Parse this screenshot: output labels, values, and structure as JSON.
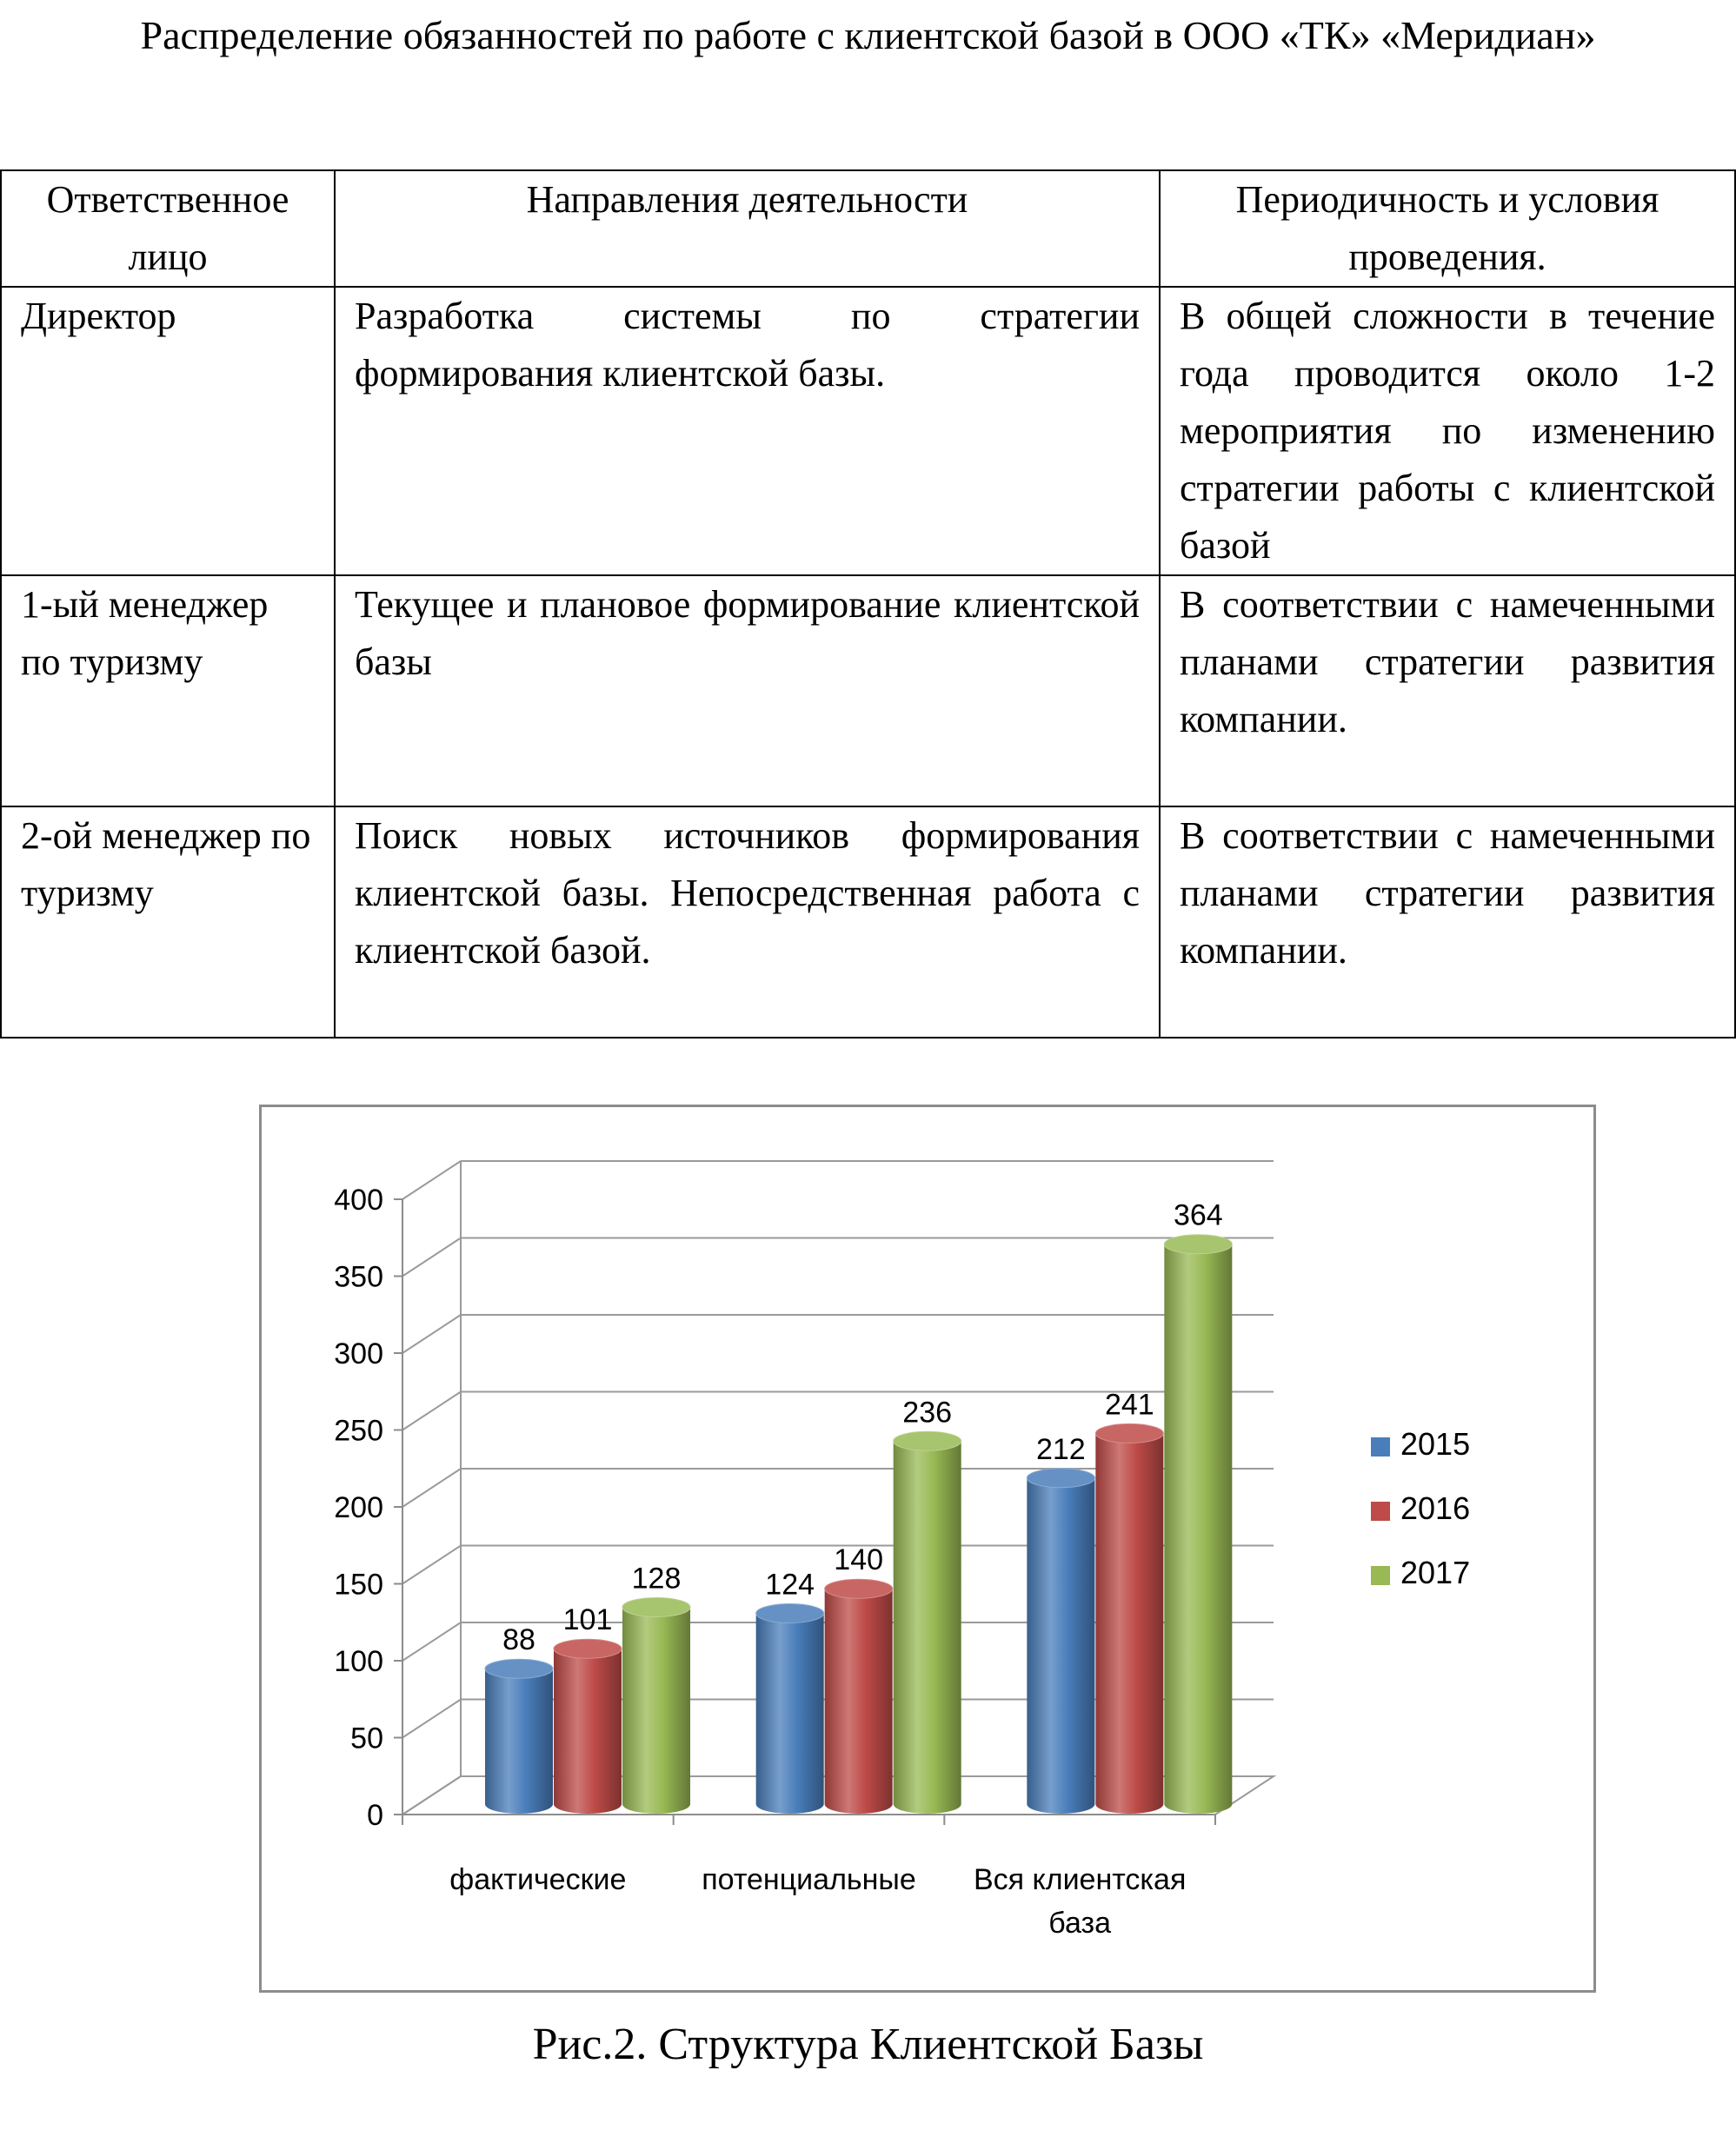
{
  "document": {
    "title": "Распределение обязанностей по работе с клиентской базой в ООО «ТК» «Меридиан»",
    "caption": "Рис.2. Структура Клиентской Базы"
  },
  "table": {
    "headers": [
      "Ответственное лицо",
      "Направления деятельности",
      "Периодичность и условия проведения."
    ],
    "rows": [
      {
        "person": "Директор",
        "activity": "Разработка системы по стратегии формирования клиентской базы.",
        "period": "В общей сложности в течение года проводится около 1-2 мероприятия по изменению стратегии работы с клиентской базой"
      },
      {
        "person": "1-ый менеджер по туризму",
        "activity": "Текущее и плановое формирование клиентской базы",
        "period": "В соответствии с намеченными планами стратегии развития компании."
      },
      {
        "person": "2-ой менеджер по туризму",
        "activity": "Поиск новых источников формирования клиентской базы. Непосредственная работа с клиентской базой.",
        "period": "В соответствии с намеченными планами стратегии развития компании."
      }
    ]
  },
  "chart_data": {
    "type": "bar",
    "style": "3d-cylinder",
    "categories": [
      "фактические",
      "потенциальные",
      "Вся клиентская база"
    ],
    "series": [
      {
        "name": "2015",
        "values": [
          88,
          124,
          212
        ],
        "color": "#4a7ebb"
      },
      {
        "name": "2016",
        "values": [
          101,
          140,
          241
        ],
        "color": "#be4b48"
      },
      {
        "name": "2017",
        "values": [
          128,
          236,
          364
        ],
        "color": "#98b954"
      }
    ],
    "yticks": [
      0,
      50,
      100,
      150,
      200,
      250,
      300,
      350,
      400
    ],
    "ylim": [
      0,
      400
    ],
    "grid": true,
    "legend": "right",
    "data_labels": true
  }
}
